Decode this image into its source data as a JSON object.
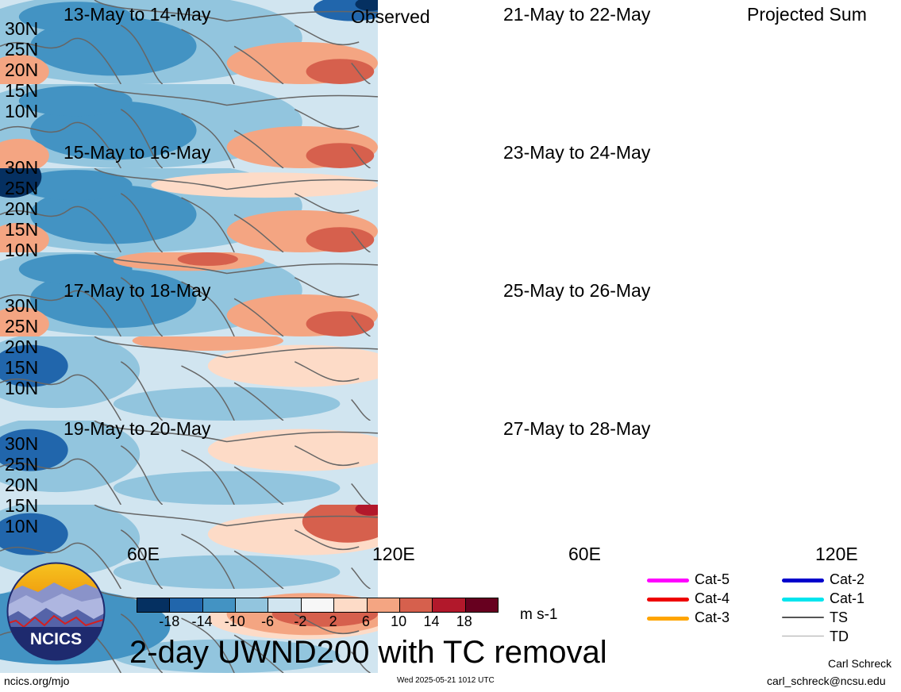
{
  "observed_label": "Observed",
  "projected_label": "Projected Sum",
  "panels_left": [
    {
      "date": "13-May to 14-May"
    },
    {
      "date": "15-May to 16-May"
    },
    {
      "date": "17-May to 18-May"
    },
    {
      "date": "19-May to 20-May"
    }
  ],
  "panels_right": [
    {
      "date": "21-May to 22-May"
    },
    {
      "date": "23-May to 24-May"
    },
    {
      "date": "25-May to 26-May"
    },
    {
      "date": "27-May to 28-May"
    }
  ],
  "lat_labels": [
    "30N",
    "25N",
    "20N",
    "15N",
    "10N"
  ],
  "lon_labels": [
    "60E",
    "120E"
  ],
  "colorbar": {
    "colors": [
      "#053061",
      "#2166ac",
      "#4393c3",
      "#92c5de",
      "#d1e5f0",
      "#f7f7f7",
      "#fddbc7",
      "#f4a582",
      "#d6604d",
      "#b2182b",
      "#67001f"
    ],
    "labels": [
      "-18",
      "-14",
      "-10",
      "-6",
      "-2",
      "2",
      "6",
      "10",
      "14",
      "18"
    ],
    "units": "m s-1"
  },
  "title": "2-day UWND200 with TC removal",
  "legend": [
    {
      "label": "Cat-5",
      "color": "#ff00ff"
    },
    {
      "label": "Cat-4",
      "color": "#ee0000"
    },
    {
      "label": "Cat-3",
      "color": "#ffa500"
    },
    {
      "label": "Cat-2",
      "color": "#0000cc"
    },
    {
      "label": "Cat-1",
      "color": "#00e5ee"
    },
    {
      "label": "TS",
      "color": "#555555"
    },
    {
      "label": "TD",
      "color": "#aaaaaa"
    }
  ],
  "logo_text": "NCICS",
  "footer": {
    "url": "ncics.org/mjo",
    "timestamp": "Wed 2025-05-21 1012 UTC",
    "author": "Carl Schreck",
    "email": "carl_schreck@ncsu.edu"
  }
}
